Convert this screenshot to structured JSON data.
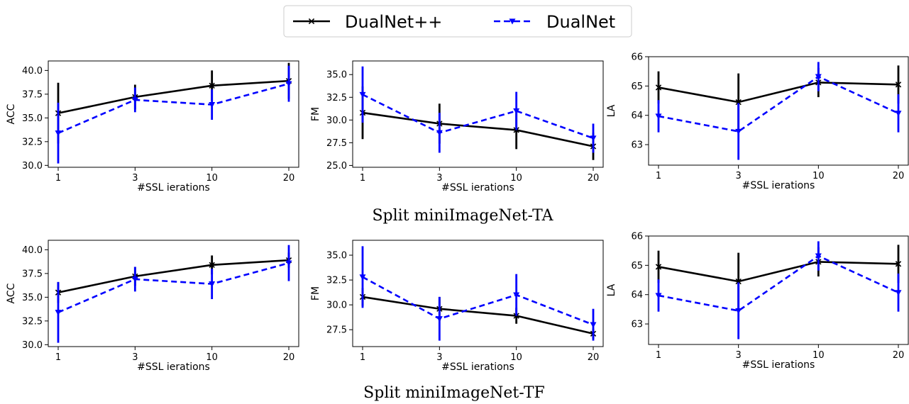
{
  "legend": [
    {
      "name": "DualNet++",
      "color": "#000000",
      "marker": "x",
      "dash": "solid"
    },
    {
      "name": "DualNet",
      "color": "#0000ff",
      "marker": "triangle-down",
      "dash": "dashed"
    }
  ],
  "captions": [
    "Split miniImageNet-TA",
    "Split miniImageNet-TF"
  ],
  "chart_data": [
    {
      "type": "line",
      "group": "Split miniImageNet-TA",
      "categories": [
        "1",
        "3",
        "10",
        "20"
      ],
      "xlabel": "#SSL ierations",
      "ylabel": "ACC",
      "ylim": [
        29.8,
        41.0
      ],
      "yticks": [
        30.0,
        32.5,
        35.0,
        37.5,
        40.0
      ],
      "ytick_decimals": 1,
      "series": [
        {
          "name": "DualNet++",
          "values": [
            35.5,
            37.2,
            38.4,
            38.9
          ],
          "err": [
            3.2,
            1.3,
            1.6,
            1.9
          ]
        },
        {
          "name": "DualNet",
          "values": [
            33.4,
            36.9,
            36.4,
            38.6
          ],
          "err": [
            3.2,
            1.3,
            1.6,
            1.9
          ]
        }
      ]
    },
    {
      "type": "line",
      "group": "Split miniImageNet-TA",
      "categories": [
        "1",
        "3",
        "10",
        "20"
      ],
      "xlabel": "#SSL ierations",
      "ylabel": "FM",
      "ylim": [
        24.8,
        36.5
      ],
      "yticks": [
        25.0,
        27.5,
        30.0,
        32.5,
        35.0
      ],
      "ytick_decimals": 1,
      "series": [
        {
          "name": "DualNet++",
          "values": [
            30.8,
            29.6,
            28.9,
            27.1
          ],
          "err": [
            2.9,
            2.2,
            2.1,
            1.5
          ]
        },
        {
          "name": "DualNet",
          "values": [
            32.8,
            28.6,
            31.0,
            28.0
          ],
          "err": [
            3.1,
            2.2,
            2.1,
            1.6
          ]
        }
      ]
    },
    {
      "type": "line",
      "group": "Split miniImageNet-TA",
      "categories": [
        "1",
        "3",
        "10",
        "20"
      ],
      "xlabel": "#SSL ierations",
      "ylabel": "LA",
      "ylim": [
        62.3,
        66.0
      ],
      "yticks": [
        63,
        64,
        65,
        66
      ],
      "ytick_decimals": 0,
      "series": [
        {
          "name": "DualNet++",
          "values": [
            64.95,
            64.45,
            65.12,
            65.05
          ],
          "err": [
            0.55,
            0.98,
            0.5,
            0.65
          ]
        },
        {
          "name": "DualNet",
          "values": [
            63.97,
            63.45,
            65.32,
            64.07
          ],
          "err": [
            0.55,
            0.97,
            0.5,
            0.65
          ]
        }
      ]
    },
    {
      "type": "line",
      "group": "Split miniImageNet-TF",
      "categories": [
        "1",
        "3",
        "10",
        "20"
      ],
      "xlabel": "#SSL ierations",
      "ylabel": "ACC",
      "ylim": [
        29.8,
        41.0
      ],
      "yticks": [
        30.0,
        32.5,
        35.0,
        37.5,
        40.0
      ],
      "ytick_decimals": 1,
      "series": [
        {
          "name": "DualNet++",
          "values": [
            35.5,
            37.2,
            38.4,
            38.9
          ],
          "err": [
            1.1,
            1.0,
            1.0,
            0.8
          ]
        },
        {
          "name": "DualNet",
          "values": [
            33.4,
            36.9,
            36.4,
            38.6
          ],
          "err": [
            3.2,
            1.3,
            1.6,
            1.9
          ]
        }
      ]
    },
    {
      "type": "line",
      "group": "Split miniImageNet-TF",
      "categories": [
        "1",
        "3",
        "10",
        "20"
      ],
      "xlabel": "#SSL ierations",
      "ylabel": "FM",
      "ylim": [
        25.8,
        36.5
      ],
      "yticks": [
        27.5,
        30.0,
        32.5,
        35.0
      ],
      "ytick_decimals": 1,
      "series": [
        {
          "name": "DualNet++",
          "values": [
            30.8,
            29.6,
            28.9,
            27.1
          ],
          "err": [
            0.9,
            1.2,
            0.8,
            0.5
          ]
        },
        {
          "name": "DualNet",
          "values": [
            32.8,
            28.6,
            31.0,
            28.0
          ],
          "err": [
            3.1,
            2.2,
            2.1,
            1.6
          ]
        }
      ]
    },
    {
      "type": "line",
      "group": "Split miniImageNet-TF",
      "categories": [
        "1",
        "3",
        "10",
        "20"
      ],
      "xlabel": "#SSL ierations",
      "ylabel": "LA",
      "ylim": [
        62.3,
        66.0
      ],
      "yticks": [
        63,
        64,
        65,
        66
      ],
      "ytick_decimals": 0,
      "series": [
        {
          "name": "DualNet++",
          "values": [
            64.95,
            64.45,
            65.12,
            65.05
          ],
          "err": [
            0.55,
            0.98,
            0.5,
            0.65
          ]
        },
        {
          "name": "DualNet",
          "values": [
            63.97,
            63.45,
            65.32,
            64.07
          ],
          "err": [
            0.55,
            0.97,
            0.5,
            0.65
          ]
        }
      ]
    }
  ]
}
